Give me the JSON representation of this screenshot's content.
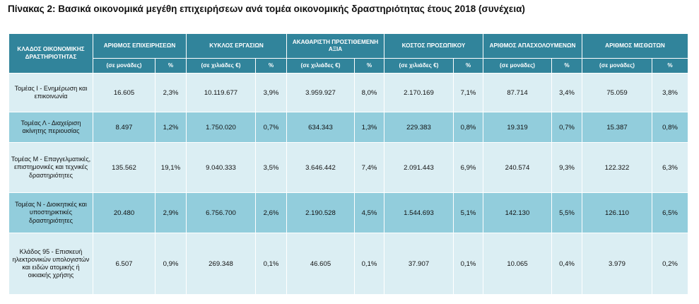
{
  "title": "Πίνακας 2: Βασικά οικονομικά μεγέθη επιχειρήσεων ανά τομέα οικονομικής δραστηριότητας έτους 2018 (συνέχεια)",
  "table": {
    "sector_header": "ΚΛΑΔΟΣ ΟΙΚΟΝΟΜΙΚΗΣ ΔΡΑΣΤΗΡΙΟΤΗΤΑΣ",
    "groups": [
      {
        "label": "ΑΡΙΘΜΟΣ ΕΠΙΧΕΙΡΗΣΕΩΝ",
        "unit": "(σε μονάδες)",
        "pct": "%"
      },
      {
        "label": "ΚΥΚΛΟΣ ΕΡΓΑΣΙΩΝ",
        "unit": "(σε χιλιάδες €)",
        "pct": "%"
      },
      {
        "label": "ΑΚΑΘΑΡΙΣΤΗ ΠΡΟΣΤΙΘΕΜΕΝΗ ΑΞΙΑ",
        "unit": "(σε χιλιάδες €)",
        "pct": "%"
      },
      {
        "label": "ΚΟΣΤΟΣ ΠΡΟΣΩΠΙΚΟΥ",
        "unit": "(σε χιλιάδες €)",
        "pct": "%"
      },
      {
        "label": "ΑΡΙΘΜΟΣ ΑΠΑΣΧΟΛΟΥΜΕΝΩΝ",
        "unit": "(σε μονάδες)",
        "pct": "%"
      },
      {
        "label": "ΑΡΙΘΜΟΣ ΜΙΣΘΩΤΩΝ",
        "unit": "(σε μονάδες)",
        "pct": "%"
      }
    ],
    "rows": [
      {
        "sector": "Τομέας Ι - Ενημέρωση και επικοινωνία",
        "cells": [
          "16.605",
          "2,3%",
          "10.119.677",
          "3,9%",
          "3.959.927",
          "8,0%",
          "2.170.169",
          "7,1%",
          "87.714",
          "3,4%",
          "75.059",
          "3,8%"
        ]
      },
      {
        "sector": "Τομέας Λ - Διαχείριση ακίνητης περιουσίας",
        "cells": [
          "8.497",
          "1,2%",
          "1.750.020",
          "0,7%",
          "634.343",
          "1,3%",
          "229.383",
          "0,8%",
          "19.319",
          "0,7%",
          "15.387",
          "0,8%"
        ]
      },
      {
        "sector": "Τομέας Μ - Επαγγελματικές, επιστημονικές και τεχνικές δραστηριότητες",
        "cells": [
          "135.562",
          "19,1%",
          "9.040.333",
          "3,5%",
          "3.646.442",
          "7,4%",
          "2.091.443",
          "6,9%",
          "240.574",
          "9,3%",
          "122.322",
          "6,3%"
        ]
      },
      {
        "sector": "Τομέας Ν - Διοικητικές και υποστηρικτικές δραστηριότητες",
        "cells": [
          "20.480",
          "2,9%",
          "6.756.700",
          "2,6%",
          "2.190.528",
          "4,5%",
          "1.544.693",
          "5,1%",
          "142.130",
          "5,5%",
          "126.110",
          "6,5%"
        ]
      },
      {
        "sector": "Κλάδος 95 - Επισκευή ηλεκτρονικών υπολογιστών και ειδών ατομικής ή οικιακής χρήσης",
        "cells": [
          "6.507",
          "0,9%",
          "269.348",
          "0,1%",
          "46.605",
          "0,1%",
          "37.907",
          "0,1%",
          "10.065",
          "0,4%",
          "3.979",
          "0,2%"
        ]
      }
    ]
  }
}
